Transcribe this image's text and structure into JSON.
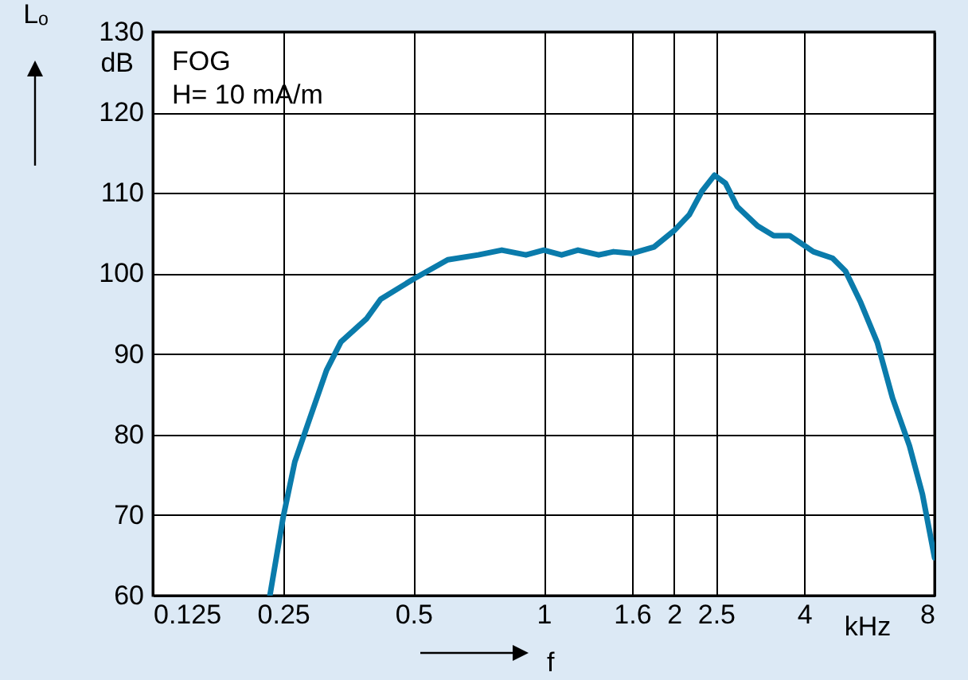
{
  "chart_data": {
    "type": "line",
    "ylabel": "Lₒ",
    "xlabel": "f",
    "log": "x",
    "annotations": [
      "dB",
      "FOG",
      "H= 10 mA/m",
      "kHz"
    ],
    "x": [
      0.233,
      0.25,
      0.266,
      0.289,
      0.315,
      0.34,
      0.39,
      0.42,
      0.5,
      0.6,
      0.706,
      0.8,
      0.91,
      1,
      1.1,
      1.2,
      1.34,
      1.45,
      1.6,
      1.8,
      2,
      2.17,
      2.32,
      2.48,
      2.63,
      2.8,
      3.12,
      3.4,
      3.7,
      4.2,
      4.65,
      4.98,
      5.4,
      5.9,
      6.4,
      7.0,
      7.5,
      8
    ],
    "series": [
      {
        "color": "#0a7bab",
        "values": [
          60,
          69.7,
          76.6,
          82.2,
          88,
          91.5,
          94.4,
          96.8,
          99.3,
          101.7,
          102.3,
          102.9,
          102.3,
          102.9,
          102.3,
          102.9,
          102.3,
          102.7,
          102.5,
          103.3,
          105.3,
          107.3,
          110.2,
          112.2,
          111.2,
          108.3,
          105.9,
          104.7,
          104.7,
          102.7,
          101.9,
          100.3,
          96.4,
          91.4,
          84.5,
          78.6,
          72.6,
          64.7
        ]
      }
    ],
    "xlim": [
      0.125,
      8
    ],
    "xticks": [
      0.125,
      0.25,
      0.5,
      1,
      1.6,
      2,
      2.5,
      4,
      8
    ],
    "ylim": [
      60,
      130
    ],
    "yticks": [
      60,
      70,
      80,
      90,
      100,
      110,
      120,
      130
    ],
    "grid": true,
    "marker": "none",
    "line_style": "solid"
  }
}
